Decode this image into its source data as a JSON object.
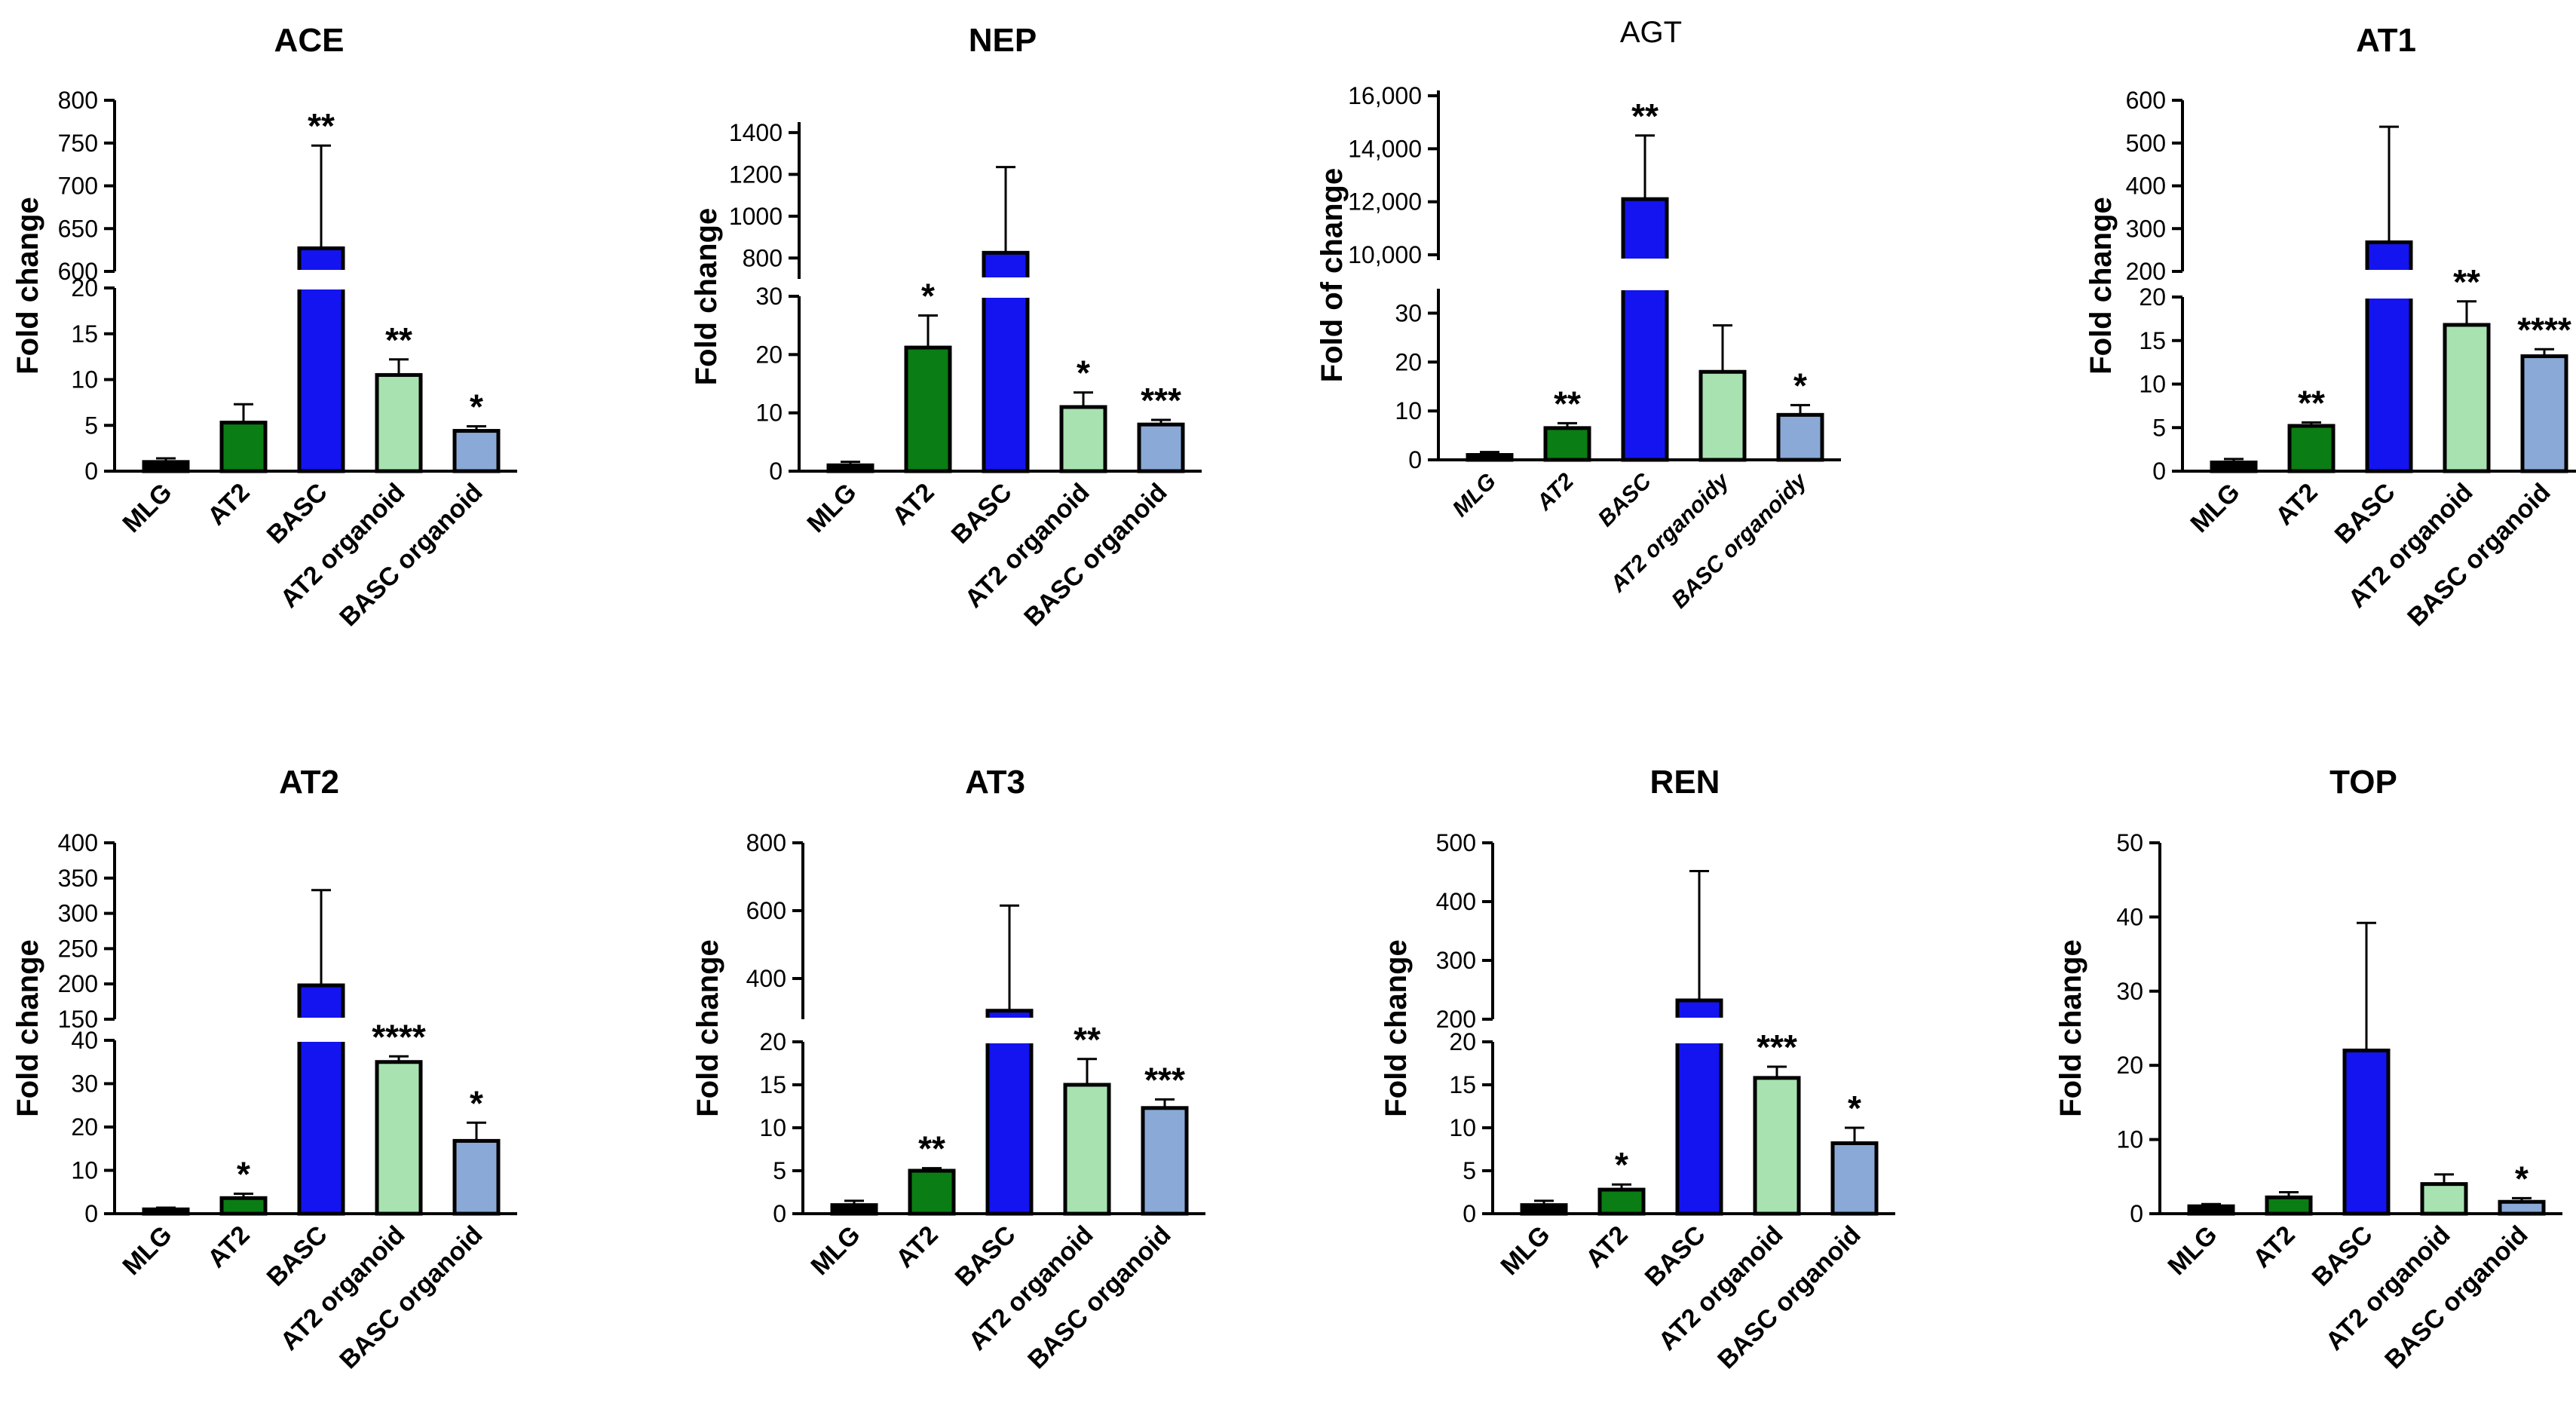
{
  "chart_data": [
    {
      "type": "bar",
      "title": "ACE",
      "ylabel": "Fold change",
      "categories": [
        "MLG",
        "AT2",
        "BASC",
        "AT2 organoid",
        "BASC organoid"
      ],
      "values": [
        1,
        5.3,
        627,
        10.5,
        4.4
      ],
      "errors": [
        0.4,
        2.0,
        120,
        1.7,
        0.5
      ],
      "significance": [
        "",
        "",
        "**",
        "**",
        "*"
      ],
      "ylim_lower": [
        0,
        20
      ],
      "yticks_lower": [
        0,
        5,
        10,
        15,
        20
      ],
      "ylim_upper": [
        600,
        800
      ],
      "yticks_upper": [
        600,
        650,
        700,
        750,
        800
      ],
      "tick_labels_lower": [
        "0",
        "5",
        "10",
        "15",
        "20"
      ],
      "tick_labels_upper": [
        "600",
        "650",
        "700",
        "750",
        "800"
      ]
    },
    {
      "type": "bar",
      "title": "NEP",
      "ylabel": "Fold change",
      "categories": [
        "MLG",
        "AT2",
        "BASC",
        "AT2 organoid",
        "BASC organoid"
      ],
      "values": [
        1,
        21.2,
        825,
        11,
        8
      ],
      "errors": [
        0.6,
        5.5,
        410,
        2.5,
        0.8
      ],
      "significance": [
        "",
        "*",
        "",
        "*",
        "***"
      ],
      "ylim_lower": [
        0,
        30
      ],
      "yticks_lower": [
        0,
        10,
        20,
        30
      ],
      "ylim_upper": [
        700,
        1450
      ],
      "yticks_upper": [
        800,
        1000,
        1200,
        1400
      ],
      "tick_labels_lower": [
        "0",
        "10",
        "20",
        "30"
      ],
      "tick_labels_upper": [
        "800",
        "1000",
        "1200",
        "1400"
      ]
    },
    {
      "type": "bar",
      "title": "AGT",
      "ylabel": "Fold of change",
      "categories": [
        "MLG",
        "AT2",
        "BASC",
        "AT2 organoidy",
        "BASC organoidy"
      ],
      "values": [
        1,
        6.5,
        12100,
        18,
        9.2
      ],
      "errors": [
        0.6,
        1.0,
        2400,
        9.5,
        2.0
      ],
      "significance": [
        "",
        "**",
        "**",
        "",
        "*"
      ],
      "ylim_lower": [
        0,
        35
      ],
      "yticks_lower": [
        0,
        10,
        20,
        30
      ],
      "ylim_upper": [
        9800,
        16200
      ],
      "yticks_upper": [
        10000,
        12000,
        14000,
        16000
      ],
      "tick_labels_lower": [
        "0",
        "10",
        "20",
        "30"
      ],
      "tick_labels_upper": [
        "10,000",
        "12,000",
        "14,000",
        "16,000"
      ]
    },
    {
      "type": "bar",
      "title": "AT1",
      "ylabel": "Fold change",
      "categories": [
        "MLG",
        "AT2",
        "BASC",
        "AT2 organoid",
        "BASC organoid"
      ],
      "values": [
        1,
        5.2,
        268,
        16.8,
        13.2
      ],
      "errors": [
        0.4,
        0.4,
        270,
        2.7,
        0.8
      ],
      "significance": [
        "",
        "**",
        "",
        "**",
        "****"
      ],
      "ylim_lower": [
        0,
        20
      ],
      "yticks_lower": [
        0,
        5,
        10,
        15,
        20
      ],
      "ylim_upper": [
        200,
        600
      ],
      "yticks_upper": [
        200,
        300,
        400,
        500,
        600
      ],
      "tick_labels_lower": [
        "0",
        "5",
        "10",
        "15",
        "20"
      ],
      "tick_labels_upper": [
        "200",
        "300",
        "400",
        "500",
        "600"
      ]
    },
    {
      "type": "bar",
      "title": "AT2",
      "ylabel": "Fold change",
      "categories": [
        "MLG",
        "AT2",
        "BASC",
        "AT2 organoid",
        "BASC organoid"
      ],
      "values": [
        1,
        3.6,
        198,
        35,
        16.8
      ],
      "errors": [
        0.4,
        1.0,
        135,
        1.3,
        4.2
      ],
      "significance": [
        "",
        "*",
        "",
        "****",
        "*"
      ],
      "ylim_lower": [
        0,
        40
      ],
      "yticks_lower": [
        0,
        10,
        20,
        30,
        40
      ],
      "ylim_upper": [
        150,
        400
      ],
      "yticks_upper": [
        150,
        200,
        250,
        300,
        350,
        400
      ],
      "tick_labels_lower": [
        "0",
        "10",
        "20",
        "30",
        "40"
      ],
      "tick_labels_upper": [
        "150",
        "200",
        "250",
        "300",
        "350",
        "400"
      ]
    },
    {
      "type": "bar",
      "title": "AT3",
      "ylabel": "Fold change",
      "categories": [
        "MLG",
        "AT2",
        "BASC",
        "AT2 organoid",
        "BASC organoid"
      ],
      "values": [
        1,
        5,
        305,
        15,
        12.3
      ],
      "errors": [
        0.5,
        0.3,
        310,
        3.0,
        1.0
      ],
      "significance": [
        "",
        "**",
        "",
        "**",
        "***"
      ],
      "ylim_lower": [
        0,
        20
      ],
      "yticks_lower": [
        0,
        5,
        10,
        15,
        20
      ],
      "ylim_upper": [
        280,
        800
      ],
      "yticks_upper": [
        400,
        600,
        800
      ],
      "tick_labels_lower": [
        "0",
        "5",
        "10",
        "15",
        "20"
      ],
      "tick_labels_upper": [
        "400",
        "600",
        "800"
      ]
    },
    {
      "type": "bar",
      "title": "REN",
      "ylabel": "Fold change",
      "categories": [
        "MLG",
        "AT2",
        "BASC",
        "AT2 organoid",
        "BASC organoid"
      ],
      "values": [
        1,
        2.8,
        232,
        15.8,
        8.2
      ],
      "errors": [
        0.5,
        0.6,
        220,
        1.3,
        1.8
      ],
      "significance": [
        "",
        "*",
        "",
        "***",
        "*"
      ],
      "ylim_lower": [
        0,
        20
      ],
      "yticks_lower": [
        0,
        5,
        10,
        15,
        20
      ],
      "ylim_upper": [
        200,
        500
      ],
      "yticks_upper": [
        200,
        300,
        400,
        500
      ],
      "tick_labels_lower": [
        "0",
        "5",
        "10",
        "15",
        "20"
      ],
      "tick_labels_upper": [
        "200",
        "300",
        "400",
        "500"
      ]
    },
    {
      "type": "bar",
      "title": "TOP",
      "ylabel": "Fold change",
      "categories": [
        "MLG",
        "AT2",
        "BASC",
        "AT2 organoid",
        "BASC organoid"
      ],
      "values": [
        1,
        2.2,
        22,
        4,
        1.6
      ],
      "errors": [
        0.3,
        0.7,
        17.2,
        1.3,
        0.5
      ],
      "significance": [
        "",
        "",
        "",
        "",
        "*"
      ],
      "ylim": [
        0,
        50
      ],
      "yticks": [
        0,
        10,
        20,
        30,
        40,
        50
      ],
      "tick_labels": [
        "0",
        "10",
        "20",
        "30",
        "40",
        "50"
      ]
    }
  ],
  "colors": {
    "MLG": "#000000",
    "AT2": "#0a7d14",
    "BASC": "#1414f0",
    "AT2 organoid": "#a8e2b0",
    "BASC organoid": "#8aa9d6"
  }
}
